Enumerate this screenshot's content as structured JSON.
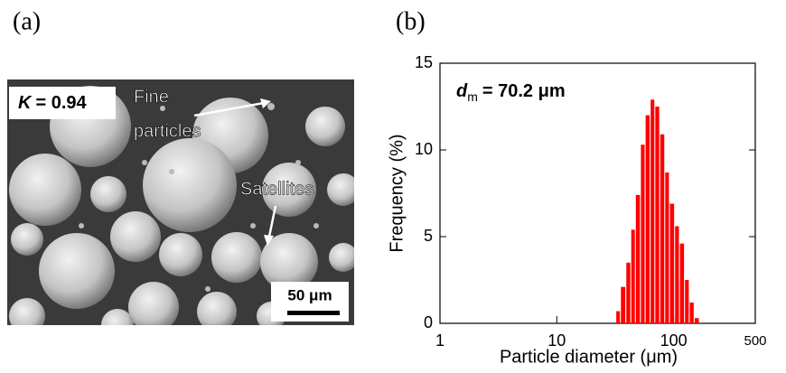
{
  "panel_a": {
    "label": "(a)",
    "k_symbol": "K",
    "k_value": "= 0.94",
    "fine_line1": "Fine",
    "fine_line2": "particles",
    "satellites": "Satellites",
    "scale_bar": "50 μm"
  },
  "chart_data": {
    "type": "histogram",
    "panel_label": "(b)",
    "x_label": "Particle diameter (μm)",
    "y_label": "Frequency (%)",
    "annotation": {
      "symbol": "d",
      "subscript": "m",
      "text": "= 70.2 μm"
    },
    "bins": [
      32,
      35,
      39,
      43,
      47,
      52,
      57,
      63,
      69,
      76,
      84,
      92,
      102,
      112,
      124,
      136,
      150,
      166
    ],
    "values": [
      0.7,
      2.1,
      3.5,
      5.4,
      7.4,
      10.3,
      12.0,
      12.9,
      12.5,
      10.9,
      8.7,
      6.9,
      5.6,
      4.6,
      2.5,
      1.2,
      0.3
    ],
    "color": "#ff0000",
    "xscale": "log",
    "xlim": [
      1,
      500
    ],
    "xticks": [
      1,
      10,
      100,
      500
    ],
    "ylim": [
      0,
      15
    ],
    "yticks": [
      0,
      5,
      10,
      15
    ]
  }
}
